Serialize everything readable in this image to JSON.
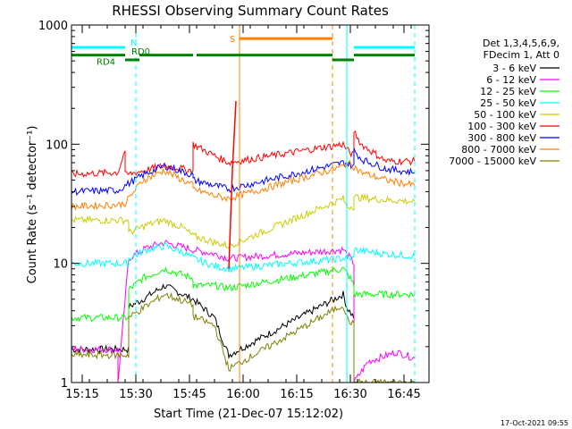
{
  "chart_data": {
    "type": "line",
    "title": "RHESSI Observing Summary Count Rates",
    "xlabel": "Start Time (21-Dec-07 15:12:02)",
    "ylabel": "Count Rate (s⁻¹ detector⁻¹)",
    "ylog": true,
    "ylim": [
      1,
      1000
    ],
    "xlim": [
      "15:12",
      "16:52"
    ],
    "x_ticks": [
      "15:15",
      "15:30",
      "15:45",
      "16:00",
      "16:15",
      "16:30",
      "16:45"
    ],
    "y_ticks": [
      "1",
      "10",
      "100",
      "1000"
    ],
    "legend_header": [
      "Det 1,3,4,5,6,9,",
      "FDecim 1, Att 0"
    ],
    "series": [
      {
        "name": "3 - 6 keV",
        "color": "#000000",
        "x": [
          "15:12",
          "15:28",
          "15:28",
          "15:32",
          "15:38",
          "15:46",
          "15:52",
          "15:55",
          "15:56",
          "16:28",
          "16:29",
          "16:31",
          "16:31"
        ],
        "y": [
          1.9,
          1.9,
          4.3,
          5.0,
          6.5,
          5.0,
          3.5,
          2.0,
          1.7,
          5.5,
          4.3,
          3.5,
          1.0
        ]
      },
      {
        "name": "6 - 12 keV",
        "color": "#ff00ff",
        "x": [
          "15:12",
          "15:25",
          "15:25",
          "15:28",
          "15:33",
          "15:38",
          "15:46",
          "15:52",
          "15:56",
          "16:28",
          "16:30",
          "16:31",
          "16:31",
          "16:35",
          "16:43",
          "16:48"
        ],
        "y": [
          1.9,
          1.9,
          1.0,
          11,
          13.5,
          15,
          13,
          12,
          11,
          13,
          11,
          10,
          1.0,
          1.5,
          1.8,
          1.6
        ]
      },
      {
        "name": "12 - 25 keV",
        "color": "#00ff00",
        "x": [
          "15:12",
          "15:28",
          "15:28",
          "15:32",
          "15:38",
          "15:46",
          "15:46",
          "15:52",
          "15:56",
          "16:28",
          "16:30",
          "16:31",
          "16:31",
          "16:40",
          "16:48"
        ],
        "y": [
          3.5,
          3.5,
          6,
          7.5,
          9,
          7.5,
          6.5,
          6.5,
          6.2,
          9,
          7.5,
          6.5,
          5.5,
          5.5,
          5.5
        ]
      },
      {
        "name": "25 - 50 keV",
        "color": "#00ffff",
        "x": [
          "15:12",
          "15:28",
          "15:28",
          "15:33",
          "15:38",
          "15:43",
          "15:46",
          "15:52",
          "15:56",
          "16:28",
          "16:30",
          "16:31",
          "16:31",
          "16:40",
          "16:48"
        ],
        "y": [
          10,
          10,
          11,
          13,
          14,
          12.5,
          11,
          9.5,
          9,
          11,
          11,
          11,
          13,
          12,
          11.5
        ]
      },
      {
        "name": "50 - 100 keV",
        "color": "#cccc00",
        "x": [
          "15:12",
          "15:28",
          "15:28",
          "15:33",
          "15:38",
          "15:43",
          "15:46",
          "15:52",
          "15:56",
          "16:28",
          "16:29",
          "16:31",
          "16:31",
          "16:40",
          "16:48"
        ],
        "y": [
          23,
          23,
          18,
          21,
          23,
          20,
          17,
          15,
          14,
          35,
          30,
          30,
          36,
          34,
          33
        ]
      },
      {
        "name": "100 - 300 keV",
        "color": "#ff0000",
        "x": [
          "15:12",
          "15:25",
          "15:27",
          "15:27",
          "15:32",
          "15:38",
          "15:46",
          "15:46",
          "15:52",
          "15:56",
          "16:28",
          "16:29",
          "16:31",
          "16:31",
          "16:33",
          "16:40",
          "16:48"
        ],
        "y": [
          56,
          58,
          90,
          55,
          60,
          66,
          60,
          100,
          80,
          70,
          100,
          90,
          80,
          130,
          100,
          72,
          72
        ]
      },
      {
        "name": "300 - 800 keV",
        "color": "#0000ff",
        "x": [
          "15:12",
          "15:25",
          "15:27",
          "15:32",
          "15:38",
          "15:46",
          "15:46",
          "15:52",
          "15:56",
          "16:28",
          "16:29",
          "16:31",
          "16:31",
          "16:33",
          "16:40",
          "16:48"
        ],
        "y": [
          40,
          41,
          45,
          55,
          66,
          55,
          50,
          45,
          42,
          70,
          70,
          65,
          90,
          75,
          62,
          58
        ]
      },
      {
        "name": "800 - 7000 keV",
        "color": "#ff8000",
        "x": [
          "15:12",
          "15:25",
          "15:27",
          "15:32",
          "15:38",
          "15:46",
          "15:46",
          "15:52",
          "15:56",
          "16:28",
          "16:29",
          "16:31",
          "16:31",
          "16:33",
          "16:40",
          "16:48"
        ],
        "y": [
          30,
          31,
          32,
          50,
          60,
          45,
          42,
          37,
          35,
          65,
          70,
          65,
          65,
          58,
          50,
          45
        ]
      },
      {
        "name": "7000 - 15000 keV",
        "color": "#808000",
        "x": [
          "15:12",
          "15:28",
          "15:28",
          "15:32",
          "15:38",
          "15:46",
          "15:46",
          "15:52",
          "15:56",
          "16:28",
          "16:29",
          "16:31",
          "16:31",
          "16:40",
          "16:48"
        ],
        "y": [
          1.7,
          1.7,
          3.5,
          4.2,
          5.5,
          4.5,
          3.6,
          3,
          1.3,
          4.5,
          3.5,
          3,
          1.0,
          1.0,
          1.0
        ]
      }
    ],
    "flare": {
      "x": [
        "15:56",
        "15:57",
        "15:58"
      ],
      "y": [
        9,
        60,
        230
      ]
    },
    "annotations": [
      {
        "label": "N",
        "color": "#00ffff",
        "x_start": "15:12",
        "x_end": "15:27",
        "x_start2": "16:31",
        "x_end2": "16:48",
        "y": 650
      },
      {
        "label": "RD0",
        "color": "#008000",
        "x": "15:31",
        "y": 510
      },
      {
        "label": "RD4",
        "color": "#008000",
        "x_start": "15:12",
        "x_end": "15:27",
        "y": 560
      },
      {
        "label": "S",
        "color": "#ff8000",
        "x_start": "15:59",
        "x_end": "16:25",
        "y": 770
      }
    ],
    "segments": {
      "rd4": [
        [
          "15:12",
          "15:27"
        ],
        [
          "15:31",
          "15:46"
        ],
        [
          "15:47",
          "16:25"
        ],
        [
          "16:31",
          "16:48"
        ]
      ],
      "rd0_level": [
        [
          "15:27",
          "15:31"
        ],
        [
          "16:25",
          "16:31"
        ]
      ],
      "night": [
        [
          "15:12",
          "15:27"
        ],
        [
          "16:31",
          "16:48"
        ]
      ],
      "saa": [
        [
          "15:59",
          "16:25"
        ]
      ]
    },
    "vlines": [
      {
        "x": "15:30",
        "color": "#00ffff",
        "style": "dashed"
      },
      {
        "x": "15:59",
        "color": "#ff8000",
        "style": "solid"
      },
      {
        "x": "16:25",
        "color": "#ff8000",
        "style": "dashed"
      },
      {
        "x": "16:29",
        "color": "#00ffff",
        "style": "solid"
      },
      {
        "x": "16:48",
        "color": "#00ffff",
        "style": "dashed"
      }
    ],
    "grid": false,
    "legend_position": "right"
  },
  "footer": {
    "timestamp": "17-Oct-2021 09:55"
  }
}
